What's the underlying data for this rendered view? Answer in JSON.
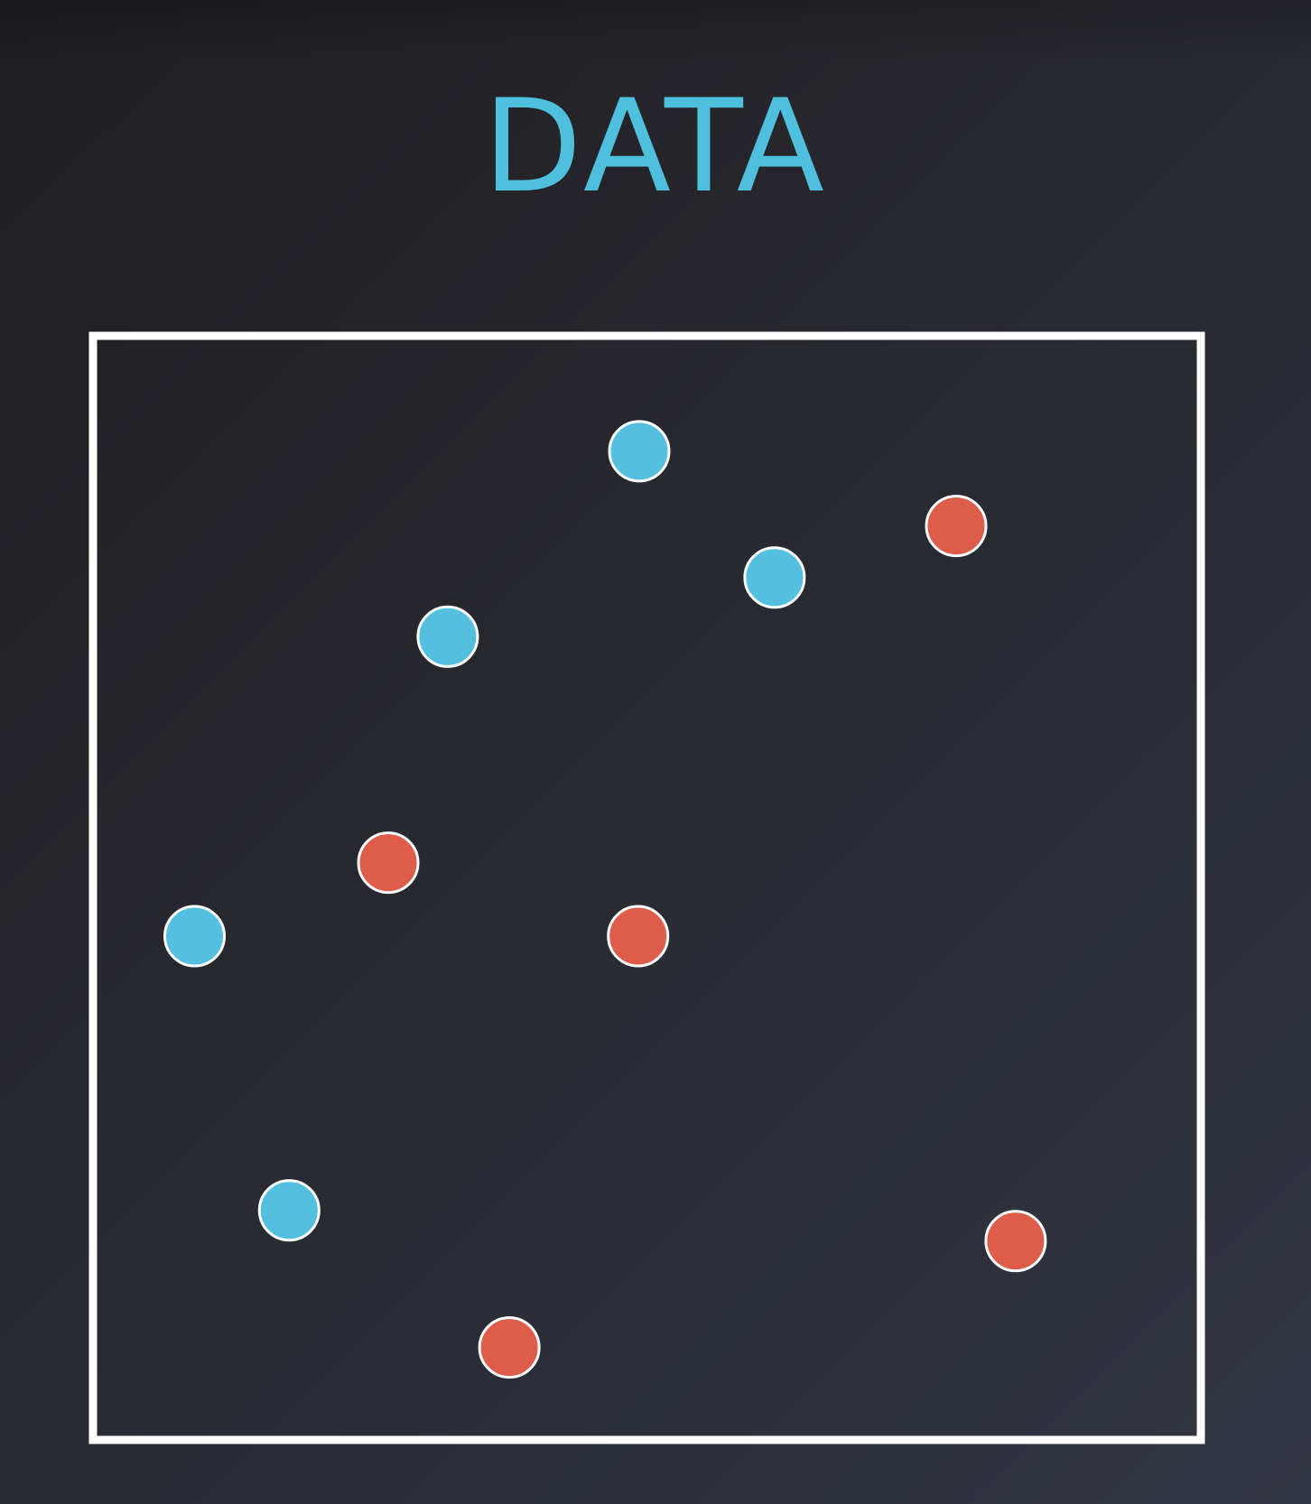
{
  "colors": {
    "title": "#4fbfde",
    "frame": "#ffffff",
    "point_outline": "#ffffff"
  },
  "chart_data": {
    "type": "scatter",
    "title": "DATA",
    "xlabel": "",
    "ylabel": "",
    "xlim": [
      0,
      100
    ],
    "ylim": [
      0,
      100
    ],
    "grid": false,
    "axis_ticks": false,
    "legend": "none",
    "series": [
      {
        "color": "#55bfdf",
        "points": [
          {
            "x": 49.3,
            "y": 89.8
          },
          {
            "x": 31.9,
            "y": 72.9
          },
          {
            "x": 61.6,
            "y": 78.3
          },
          {
            "x": 8.9,
            "y": 45.6
          },
          {
            "x": 17.5,
            "y": 20.6
          }
        ]
      },
      {
        "color": "#de5c4a",
        "points": [
          {
            "x": 78.1,
            "y": 83.0
          },
          {
            "x": 26.5,
            "y": 52.3
          },
          {
            "x": 49.2,
            "y": 45.6
          },
          {
            "x": 83.5,
            "y": 17.8
          },
          {
            "x": 37.5,
            "y": 8.1
          }
        ]
      }
    ]
  }
}
